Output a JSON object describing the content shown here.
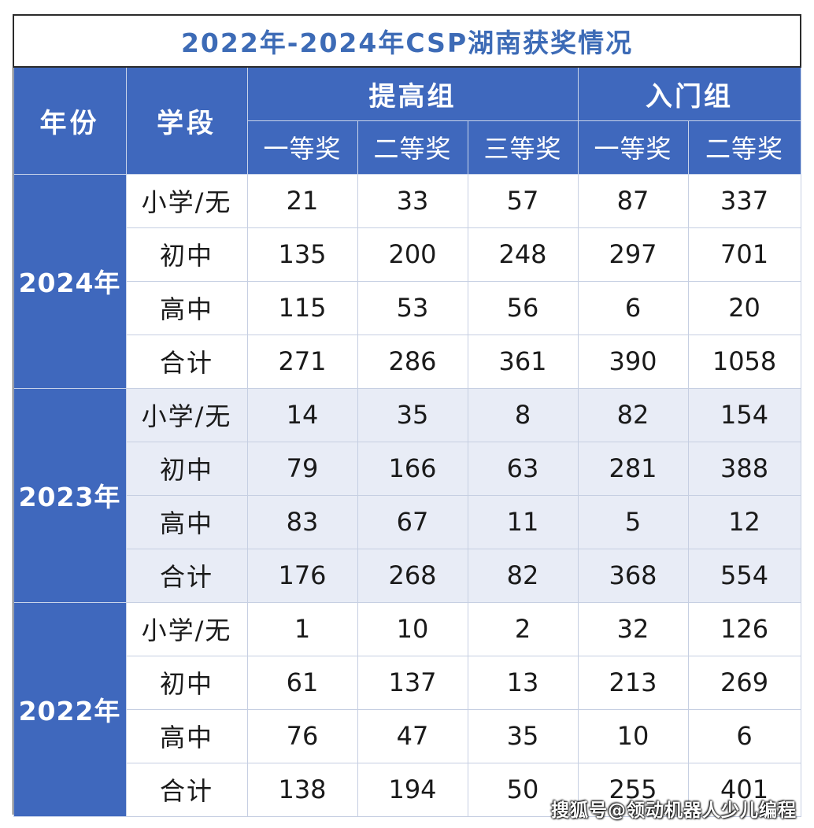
{
  "title": "2022年-2024年CSP湖南获奖情况",
  "headers": {
    "year": "年份",
    "segment": "学段",
    "group_advanced": "提高组",
    "group_intro": "入门组",
    "advanced_prizes": [
      "一等奖",
      "二等奖",
      "三等奖"
    ],
    "intro_prizes": [
      "一等奖",
      "二等奖"
    ]
  },
  "years": [
    {
      "label": "2024年",
      "rows": [
        {
          "segment": "小学/无",
          "values": [
            "21",
            "33",
            "57",
            "87",
            "337"
          ]
        },
        {
          "segment": "初中",
          "values": [
            "135",
            "200",
            "248",
            "297",
            "701"
          ]
        },
        {
          "segment": "高中",
          "values": [
            "115",
            "53",
            "56",
            "6",
            "20"
          ]
        },
        {
          "segment": "合计",
          "values": [
            "271",
            "286",
            "361",
            "390",
            "1058"
          ]
        }
      ]
    },
    {
      "label": "2023年",
      "rows": [
        {
          "segment": "小学/无",
          "values": [
            "14",
            "35",
            "8",
            "82",
            "154"
          ]
        },
        {
          "segment": "初中",
          "values": [
            "79",
            "166",
            "63",
            "281",
            "388"
          ]
        },
        {
          "segment": "高中",
          "values": [
            "83",
            "67",
            "11",
            "5",
            "12"
          ]
        },
        {
          "segment": "合计",
          "values": [
            "176",
            "268",
            "82",
            "368",
            "554"
          ]
        }
      ]
    },
    {
      "label": "2022年",
      "rows": [
        {
          "segment": "小学/无",
          "values": [
            "1",
            "10",
            "2",
            "32",
            "126"
          ]
        },
        {
          "segment": "初中",
          "values": [
            "61",
            "137",
            "13",
            "213",
            "269"
          ]
        },
        {
          "segment": "高中",
          "values": [
            "76",
            "47",
            "35",
            "10",
            "6"
          ]
        },
        {
          "segment": "合计",
          "values": [
            "138",
            "194",
            "50",
            "255",
            "401"
          ]
        }
      ]
    }
  ],
  "watermark": "搜狐号@领动机器人少儿编程",
  "colors": {
    "header_bg": "#3f68bd",
    "title_text": "#3d6bb6",
    "stripe": "#e8ecf6"
  }
}
